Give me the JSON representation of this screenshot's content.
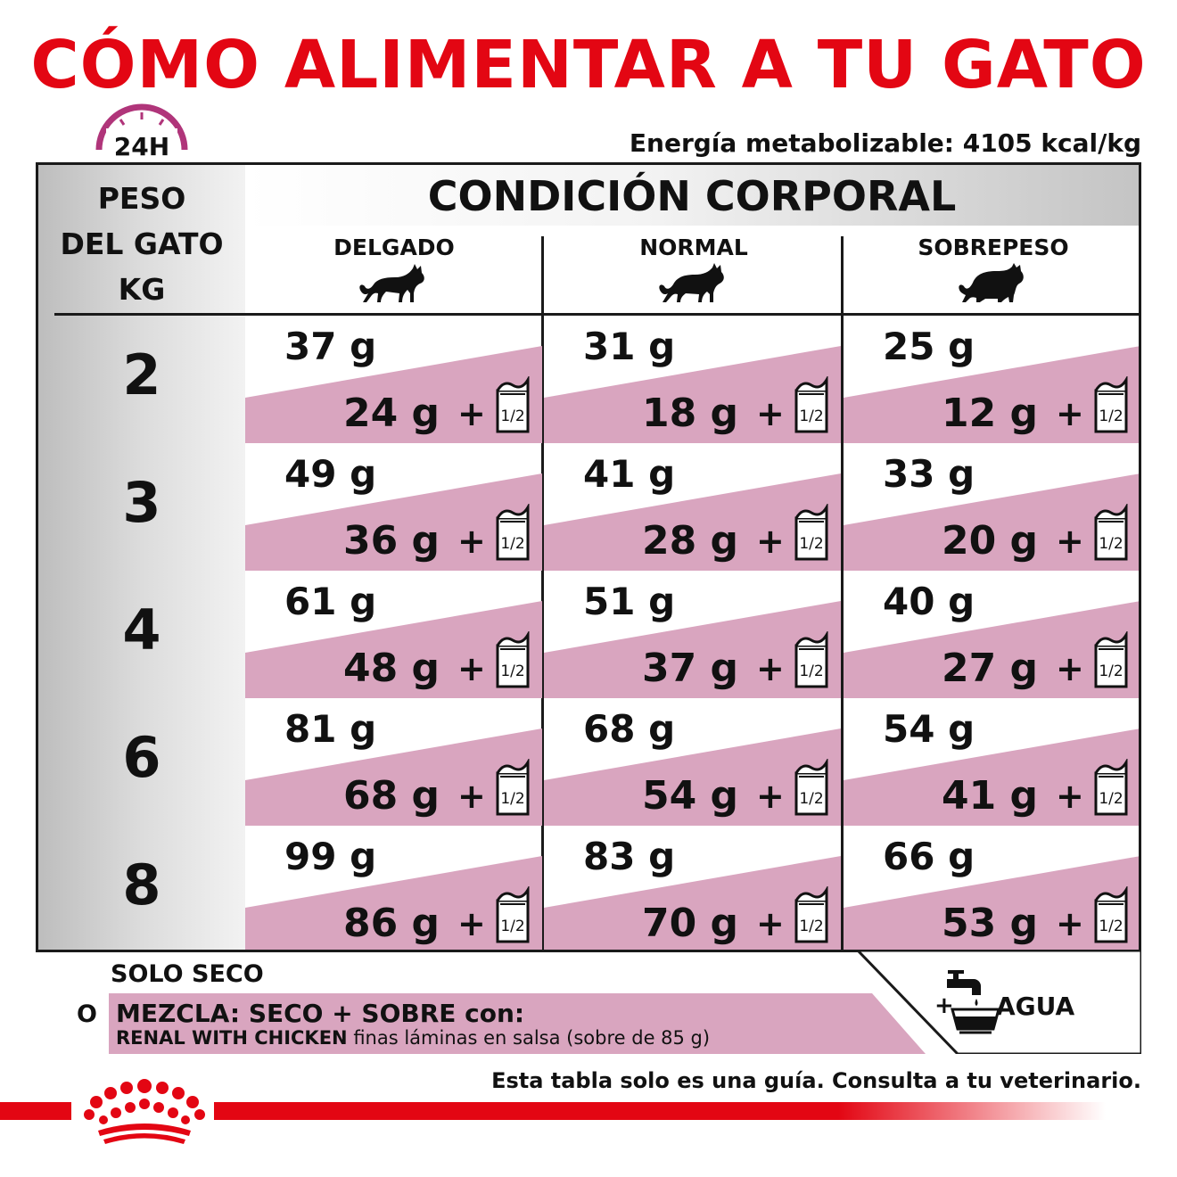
{
  "title": "CÓMO ALIMENTAR A TU GATO",
  "clock_label": "24H",
  "energy": "Energía metabolizable: 4105 kcal/kg",
  "header": {
    "weight_lines": [
      "PESO",
      "DEL GATO",
      "KG"
    ],
    "condition_title": "CONDICIÓN CORPORAL",
    "columns": [
      "DELGADO",
      "NORMAL",
      "SOBREPESO"
    ]
  },
  "rows": [
    {
      "weight": "2",
      "cells": [
        {
          "dry": "37 g",
          "mix": "24 g"
        },
        {
          "dry": "31 g",
          "mix": "18 g"
        },
        {
          "dry": "25 g",
          "mix": "12 g"
        }
      ]
    },
    {
      "weight": "3",
      "cells": [
        {
          "dry": "49 g",
          "mix": "36 g"
        },
        {
          "dry": "41 g",
          "mix": "28 g"
        },
        {
          "dry": "33 g",
          "mix": "20 g"
        }
      ]
    },
    {
      "weight": "4",
      "cells": [
        {
          "dry": "61 g",
          "mix": "48 g"
        },
        {
          "dry": "51 g",
          "mix": "37 g"
        },
        {
          "dry": "40 g",
          "mix": "27 g"
        }
      ]
    },
    {
      "weight": "6",
      "cells": [
        {
          "dry": "81 g",
          "mix": "68 g"
        },
        {
          "dry": "68 g",
          "mix": "54 g"
        },
        {
          "dry": "54 g",
          "mix": "41 g"
        }
      ]
    },
    {
      "weight": "8",
      "cells": [
        {
          "dry": "99 g",
          "mix": "86 g"
        },
        {
          "dry": "83 g",
          "mix": "70 g"
        },
        {
          "dry": "66 g",
          "mix": "53 g"
        }
      ]
    }
  ],
  "plus": "+",
  "pouch_fraction": "1/2",
  "legend": {
    "dry_only": "SOLO SECO",
    "or": "O",
    "mix_title": "MEZCLA: SECO + SOBRE con:",
    "mix_product": "RENAL WITH CHICKEN",
    "mix_detail": " finas láminas en salsa (sobre de 85 g)",
    "water_plus": "+",
    "water": "AGUA"
  },
  "disclaimer": "Esta tabla solo es una guía. Consulta a tu veterinario.",
  "colors": {
    "brand_red": "#e30613",
    "pink": "#d9a5bf",
    "clock": "#b0357a"
  }
}
